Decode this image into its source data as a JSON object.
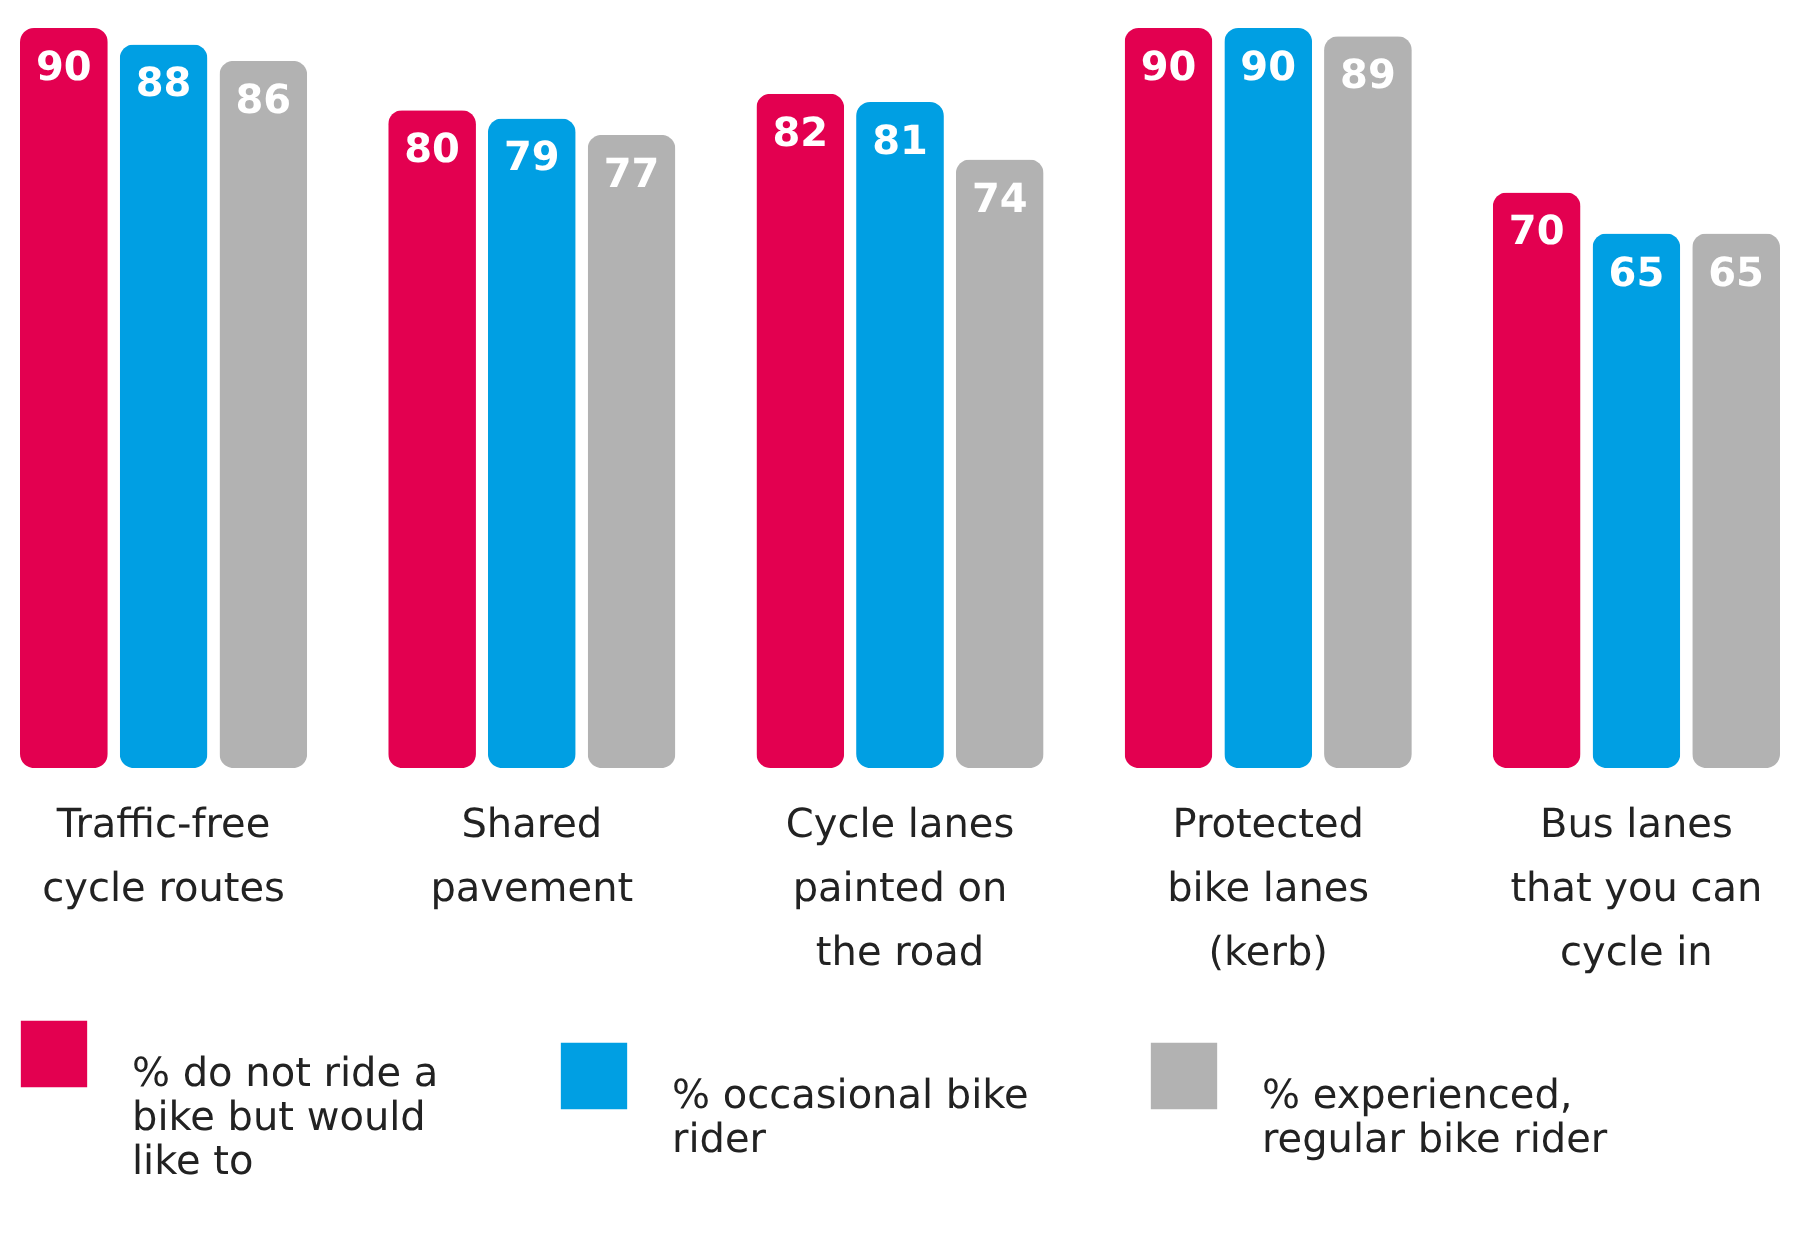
{
  "chart_data": {
    "type": "bar",
    "categories": [
      "Traffic-free cycle routes",
      "Shared pavement",
      "Cycle lanes painted on the road",
      "Protected bike lanes (kerb)",
      "Bus lanes that you can cycle in"
    ],
    "series": [
      {
        "name": "% do not ride a bike but would like to",
        "color": "#e30050",
        "values": [
          90,
          80,
          82,
          90,
          70
        ]
      },
      {
        "name": "% occasional bike rider",
        "color": "#009fe3",
        "values": [
          88,
          79,
          81,
          90,
          65
        ]
      },
      {
        "name": "% experienced, regular bike rider",
        "color": "#b2b2b2",
        "values": [
          86,
          77,
          74,
          89,
          65
        ]
      }
    ],
    "data_labels": true,
    "legend": "bottom",
    "grid": false
  }
}
